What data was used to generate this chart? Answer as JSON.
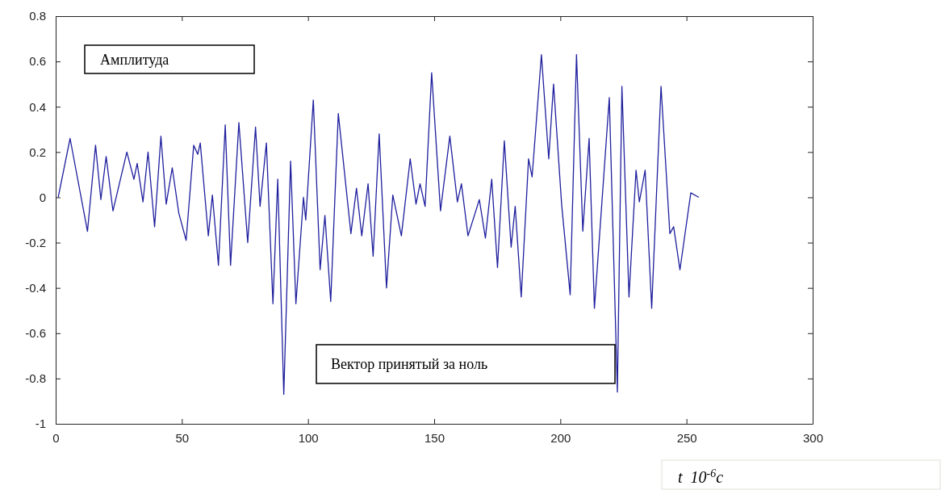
{
  "chart_data": {
    "type": "line",
    "xlabel": "t  10$^{-6}$c",
    "annotations": [
      "Амплитуда",
      "Вектор принятый за ноль"
    ],
    "xlim": [
      0,
      300
    ],
    "xticks": [
      0,
      50,
      100,
      150,
      200,
      250,
      300
    ],
    "ylim": [
      -1,
      0.8
    ],
    "yticks": [
      -1,
      -0.8,
      -0.6,
      -0.4,
      -0.2,
      0,
      0.2,
      0.4,
      0.6,
      0.8
    ],
    "grid": false,
    "line_style": "solid",
    "series": [
      {
        "color": "#1f1f9e",
        "x": [
          1,
          5.7,
          12.6,
          15.8,
          17.9,
          20,
          22.7,
          28.2,
          31,
          32.3,
          34.6,
          36.6,
          39.2,
          41.7,
          43.8,
          46.2,
          48.8,
          51.7,
          54.7,
          56.3,
          57.3,
          60.5,
          62.1,
          64.5,
          67.2,
          69.3,
          72.6,
          76.1,
          79.2,
          81,
          83.5,
          86.1,
          88,
          90.4,
          93.1,
          95.2,
          98.2,
          99.1,
          102.1,
          104.8,
          106.7,
          109,
          112,
          117,
          119.2,
          121.3,
          123.8,
          125.8,
          128.2,
          131.1,
          133.6,
          137,
          140.5,
          142.8,
          144.4,
          146.4,
          149,
          152.5,
          156.2,
          159.2,
          160.8,
          163.4,
          167.9,
          170.3,
          172.8,
          175.1,
          177.8,
          180.5,
          182.1,
          184.5,
          187.4,
          188.8,
          192.5,
          195.4,
          197.3,
          200.5,
          203.9,
          206.4,
          208.9,
          211.4,
          213.5,
          219.4,
          222.6,
          224.4,
          227.2,
          230,
          231.3,
          233.6,
          236.2,
          239.9,
          243.4,
          244.9,
          247.4,
          251.7,
          254.9
        ],
        "values": [
          0,
          0.26,
          -0.15,
          0.23,
          -0.01,
          0.18,
          -0.06,
          0.2,
          0.08,
          0.15,
          -0.02,
          0.2,
          -0.13,
          0.27,
          -0.03,
          0.13,
          -0.07,
          -0.19,
          0.23,
          0.19,
          0.24,
          -0.17,
          0.01,
          -0.3,
          0.32,
          -0.3,
          0.33,
          -0.2,
          0.31,
          -0.04,
          0.24,
          -0.47,
          0.08,
          -0.87,
          0.16,
          -0.47,
          0,
          -0.1,
          0.43,
          -0.32,
          -0.08,
          -0.46,
          0.37,
          -0.16,
          0.04,
          -0.17,
          0.06,
          -0.26,
          0.28,
          -0.4,
          0.01,
          -0.17,
          0.17,
          -0.03,
          0.06,
          -0.04,
          0.55,
          -0.06,
          0.27,
          -0.02,
          0.06,
          -0.17,
          -0.01,
          -0.18,
          0.08,
          -0.31,
          0.25,
          -0.22,
          -0.04,
          -0.44,
          0.17,
          0.09,
          0.63,
          0.17,
          0.5,
          -0.03,
          -0.43,
          0.63,
          -0.15,
          0.26,
          -0.49,
          0.44,
          -0.86,
          0.49,
          -0.44,
          0.12,
          -0.02,
          0.12,
          -0.49,
          0.49,
          -0.16,
          -0.13,
          -0.32,
          0.02,
          0
        ]
      }
    ]
  }
}
